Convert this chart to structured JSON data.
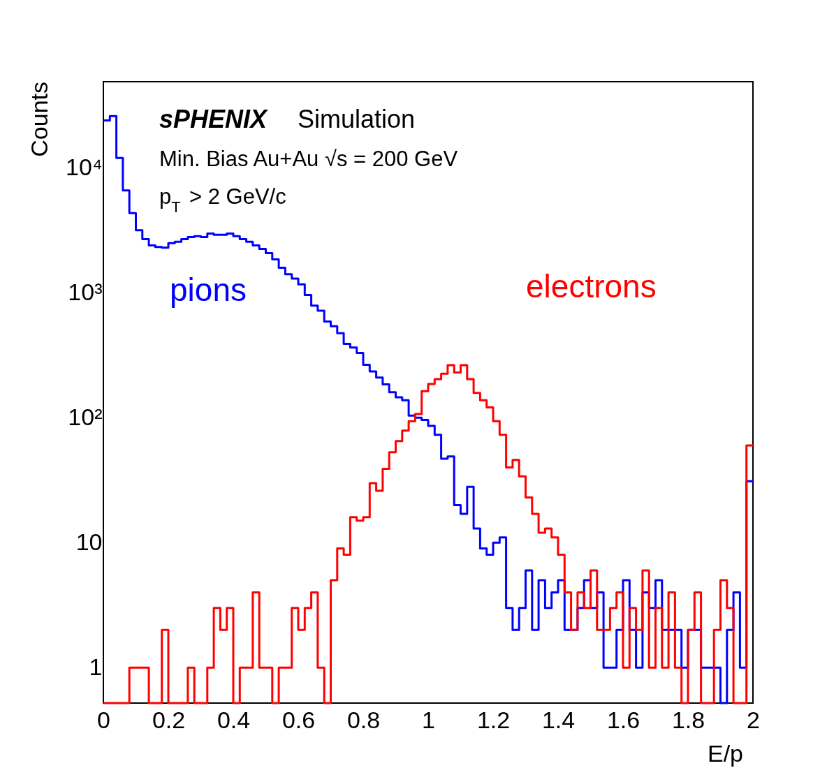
{
  "chart_data": {
    "type": "histogram",
    "xlabel": "E/p",
    "ylabel": "Counts",
    "annotations": [
      "sPHENIX Simulation",
      "Min. Bias Au+Au √s = 200 GeV",
      "p$_{T}$ > 2 GeV/c"
    ],
    "bins": [
      0,
      0.02,
      0.04,
      0.06,
      0.08,
      0.1,
      0.12,
      0.14,
      0.16,
      0.18,
      0.2,
      0.22,
      0.24,
      0.26,
      0.28,
      0.3,
      0.32,
      0.34,
      0.36,
      0.38,
      0.4,
      0.42,
      0.44,
      0.46,
      0.48,
      0.5,
      0.52,
      0.54,
      0.56,
      0.58,
      0.6,
      0.62,
      0.64,
      0.66,
      0.68,
      0.7,
      0.72,
      0.74,
      0.76,
      0.78,
      0.8,
      0.82,
      0.84,
      0.86,
      0.88,
      0.9,
      0.92,
      0.94,
      0.96,
      0.98,
      1,
      1.02,
      1.04,
      1.06,
      1.08,
      1.1,
      1.12,
      1.14,
      1.16,
      1.18,
      1.2,
      1.22,
      1.24,
      1.26,
      1.28,
      1.3,
      1.32,
      1.34,
      1.36,
      1.38,
      1.4,
      1.42,
      1.44,
      1.46,
      1.48,
      1.5,
      1.52,
      1.54,
      1.56,
      1.58,
      1.6,
      1.62,
      1.64,
      1.66,
      1.68,
      1.7,
      1.72,
      1.74,
      1.76,
      1.78,
      1.8,
      1.82,
      1.84,
      1.86,
      1.88,
      1.9,
      1.92,
      1.94,
      1.96,
      1.98,
      2
    ],
    "series": [
      {
        "name": "pions",
        "color": "#0000ff",
        "values": [
          24000,
          26000,
          12000,
          6600,
          4350,
          3170,
          2690,
          2400,
          2330,
          2300,
          2500,
          2560,
          2690,
          2800,
          2840,
          2800,
          2980,
          2920,
          2920,
          2980,
          2840,
          2690,
          2560,
          2400,
          2250,
          2080,
          1850,
          1590,
          1410,
          1300,
          1170,
          960,
          790,
          720,
          590,
          540,
          475,
          390,
          365,
          330,
          265,
          235,
          210,
          185,
          160,
          146,
          138,
          104,
          100,
          96,
          86,
          73,
          47,
          49,
          20,
          17,
          28,
          13,
          9,
          8,
          10,
          11,
          3,
          2,
          3,
          6,
          2,
          5,
          3,
          4,
          5,
          2,
          2,
          3,
          5,
          3,
          4,
          1,
          1,
          2,
          5,
          2,
          1,
          4,
          3,
          5,
          2,
          2,
          2,
          1,
          2,
          2,
          1,
          1,
          1,
          null,
          2,
          4,
          1,
          31
        ]
      },
      {
        "name": "electrons",
        "color": "#ff0000",
        "values": [
          null,
          null,
          null,
          null,
          1,
          1,
          1,
          null,
          null,
          2,
          null,
          null,
          null,
          1,
          null,
          null,
          1,
          3,
          2,
          3,
          null,
          1,
          1,
          4,
          1,
          1,
          null,
          1,
          1,
          3,
          2,
          3,
          4,
          1,
          null,
          5,
          9,
          8,
          16,
          15,
          16,
          30,
          26,
          39,
          53,
          65,
          79,
          94,
          107,
          163,
          186,
          204,
          225,
          264,
          230,
          264,
          204,
          158,
          138,
          121,
          94,
          73,
          40,
          46,
          34,
          23,
          17,
          12,
          13,
          11,
          8,
          4,
          2,
          4,
          3,
          6,
          2,
          2,
          3,
          4,
          1,
          3,
          2,
          6,
          1,
          3,
          1,
          4,
          1,
          null,
          2,
          4,
          null,
          null,
          2,
          5,
          3,
          null,
          null,
          60
        ]
      }
    ],
    "xlim": [
      0,
      2
    ],
    "xticks": [
      0,
      0.2,
      0.4,
      0.6,
      0.8,
      1,
      1.2,
      1.4,
      1.6,
      1.8,
      2
    ],
    "ylim": [
      0.52,
      49000
    ],
    "log": "y",
    "yticks": [
      {
        "value": 1,
        "label": "1"
      },
      {
        "value": 10,
        "label": "10"
      },
      {
        "value": 100,
        "label": "10²"
      },
      {
        "value": 1000,
        "label": "10³"
      },
      {
        "value": 10000,
        "label": "10⁴"
      }
    ],
    "grid": false
  }
}
